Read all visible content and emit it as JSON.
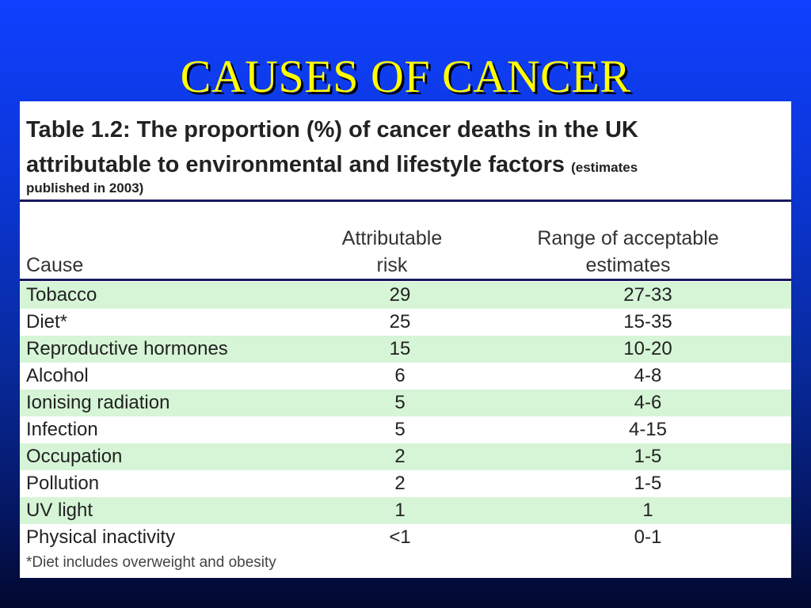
{
  "slide_title": "CAUSES OF CANCER",
  "caption": {
    "line1": "Table 1.2: The proportion (%) of cancer deaths in the UK",
    "line2": "attributable to environmental and lifestyle factors",
    "note_a": "(estimates",
    "note_b": "published in 2003)"
  },
  "headers": {
    "cause": "Cause",
    "risk_1": "Attributable",
    "risk_2": "risk",
    "range_1": "Range of acceptable",
    "range_2": "estimates"
  },
  "rows": [
    {
      "cause": "Tobacco",
      "risk": "29",
      "range": "27-33"
    },
    {
      "cause": "Diet*",
      "risk": "25",
      "range": "15-35"
    },
    {
      "cause": "Reproductive hormones",
      "risk": "15",
      "range": "10-20"
    },
    {
      "cause": "Alcohol",
      "risk": "6",
      "range": "4-8"
    },
    {
      "cause": "Ionising radiation",
      "risk": "5",
      "range": "4-6"
    },
    {
      "cause": "Infection",
      "risk": "5",
      "range": "4-15"
    },
    {
      "cause": "Occupation",
      "risk": "2",
      "range": "1-5"
    },
    {
      "cause": "Pollution",
      "risk": "2",
      "range": "1-5"
    },
    {
      "cause": "UV light",
      "risk": "1",
      "range": "1"
    },
    {
      "cause": "Physical inactivity",
      "risk": "<1",
      "range": "0-1"
    }
  ],
  "footnote": "*Diet includes overweight and obesity",
  "colors": {
    "title": "#ffff00",
    "row_highlight": "#d6f5d6",
    "rule": "#1a1a5e"
  }
}
